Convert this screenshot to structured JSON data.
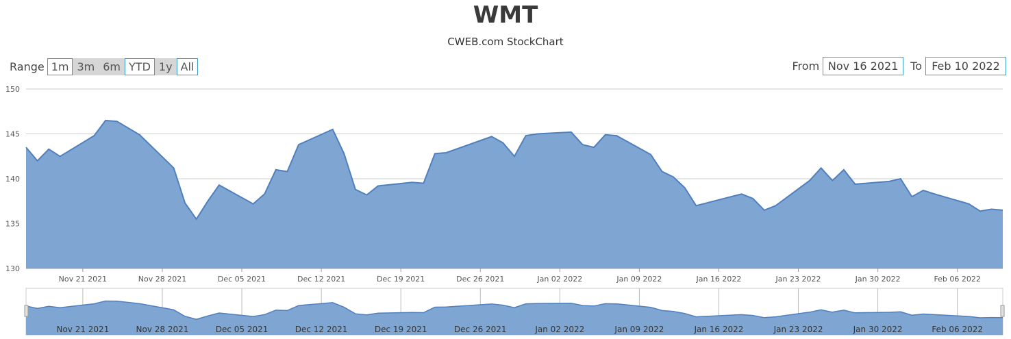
{
  "header": {
    "title": "WMT",
    "subtitle": "CWEB.com StockChart"
  },
  "range_selector": {
    "label": "Range",
    "buttons": [
      {
        "label": "1m",
        "style": "outline"
      },
      {
        "label": "3m",
        "style": "filled"
      },
      {
        "label": "6m",
        "style": "filled"
      },
      {
        "label": "YTD",
        "style": "outline"
      },
      {
        "label": "1y",
        "style": "filled"
      },
      {
        "label": "All",
        "style": "outline"
      }
    ]
  },
  "date_inputs": {
    "from_label": "From",
    "from_value": "Nov 16 2021",
    "to_label": "To",
    "to_value": "Feb 10 2022"
  },
  "colors": {
    "area_fill": "#7fa6d2",
    "area_line": "#4f7fbd",
    "grid": "#cccccc",
    "button_border": "#3aa0c9",
    "button_fill": "#d6d6d6"
  },
  "chart_data": {
    "type": "area",
    "ylim": [
      130,
      150
    ],
    "yticks": [
      130,
      135,
      140,
      145,
      150
    ],
    "xlim": [
      "2021-11-16",
      "2022-02-10"
    ],
    "xticks": [
      "Nov 21 2021",
      "Nov 28 2021",
      "Dec 05 2021",
      "Dec 12 2021",
      "Dec 19 2021",
      "Dec 26 2021",
      "Jan 02 2022",
      "Jan 09 2022",
      "Jan 16 2022",
      "Jan 23 2022",
      "Jan 30 2022",
      "Feb 06 2022"
    ],
    "grid": true,
    "series": [
      {
        "x": [
          "2021-11-16",
          "2021-11-17",
          "2021-11-18",
          "2021-11-19",
          "2021-11-22",
          "2021-11-23",
          "2021-11-24",
          "2021-11-26",
          "2021-11-29",
          "2021-11-30",
          "2021-12-01",
          "2021-12-02",
          "2021-12-03",
          "2021-12-06",
          "2021-12-07",
          "2021-12-08",
          "2021-12-09",
          "2021-12-10",
          "2021-12-13",
          "2021-12-14",
          "2021-12-15",
          "2021-12-16",
          "2021-12-17",
          "2021-12-20",
          "2021-12-21",
          "2021-12-22",
          "2021-12-23",
          "2021-12-27",
          "2021-12-28",
          "2021-12-29",
          "2021-12-30",
          "2021-12-31",
          "2022-01-03",
          "2022-01-04",
          "2022-01-05",
          "2022-01-06",
          "2022-01-07",
          "2022-01-10",
          "2022-01-11",
          "2022-01-12",
          "2022-01-13",
          "2022-01-14",
          "2022-01-18",
          "2022-01-19",
          "2022-01-20",
          "2022-01-21",
          "2022-01-24",
          "2022-01-25",
          "2022-01-26",
          "2022-01-27",
          "2022-01-28",
          "2022-01-31",
          "2022-02-01",
          "2022-02-02",
          "2022-02-03",
          "2022-02-04",
          "2022-02-07",
          "2022-02-08",
          "2022-02-09",
          "2022-02-10"
        ],
        "values": [
          143.5,
          142.0,
          143.3,
          142.5,
          144.8,
          146.5,
          146.4,
          144.9,
          141.2,
          137.3,
          135.5,
          137.5,
          139.3,
          137.2,
          138.3,
          141.0,
          140.8,
          143.8,
          145.5,
          142.8,
          138.8,
          138.2,
          139.2,
          139.6,
          139.5,
          142.8,
          142.9,
          144.7,
          144.0,
          142.5,
          144.8,
          145.0,
          145.2,
          143.8,
          143.5,
          144.9,
          144.8,
          142.7,
          140.8,
          140.2,
          139.0,
          137.0,
          138.3,
          137.8,
          136.5,
          137.0,
          139.8,
          141.2,
          139.8,
          141.0,
          139.4,
          139.7,
          140.0,
          138.0,
          138.7,
          138.3,
          137.2,
          136.4,
          136.6,
          136.5
        ]
      }
    ]
  }
}
